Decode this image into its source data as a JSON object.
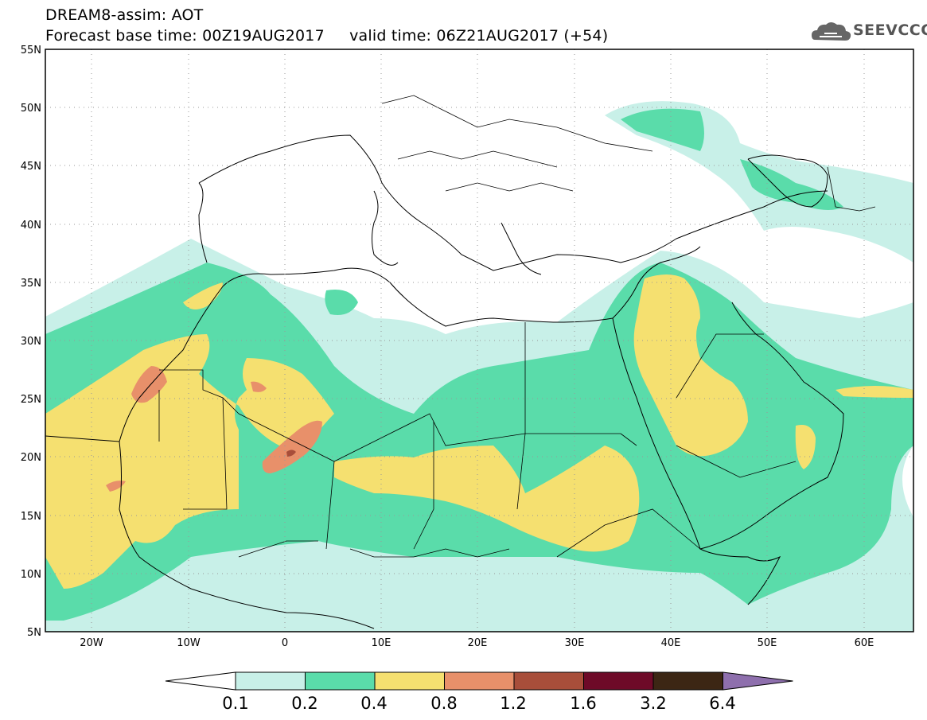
{
  "title": {
    "line1": "DREAM8-assim: AOT",
    "line2": "Forecast base time: 00Z19AUG2017     valid time: 06Z21AUG2017 (+54)"
  },
  "logo": {
    "text": "SEEVCCC",
    "icon": "cloud-logo-icon"
  },
  "map": {
    "lat_labels": [
      "55N",
      "50N",
      "45N",
      "40N",
      "35N",
      "30N",
      "25N",
      "20N",
      "15N",
      "10N",
      "5N"
    ],
    "lon_labels": [
      "20W",
      "10W",
      "0",
      "10E",
      "20E",
      "30E",
      "40E",
      "50E",
      "60E"
    ],
    "lon_range": [
      -25,
      65
    ],
    "lat_range": [
      5,
      55
    ]
  },
  "colorbar": {
    "labels": [
      "0.1",
      "0.2",
      "0.4",
      "0.8",
      "1.2",
      "1.6",
      "3.2",
      "6.4"
    ],
    "colors": [
      "#ffffff",
      "#c8f0e8",
      "#5adcaa",
      "#f5e070",
      "#e8906a",
      "#a84e3a",
      "#6e0a28",
      "#3c2614",
      "#8e6fad"
    ]
  }
}
